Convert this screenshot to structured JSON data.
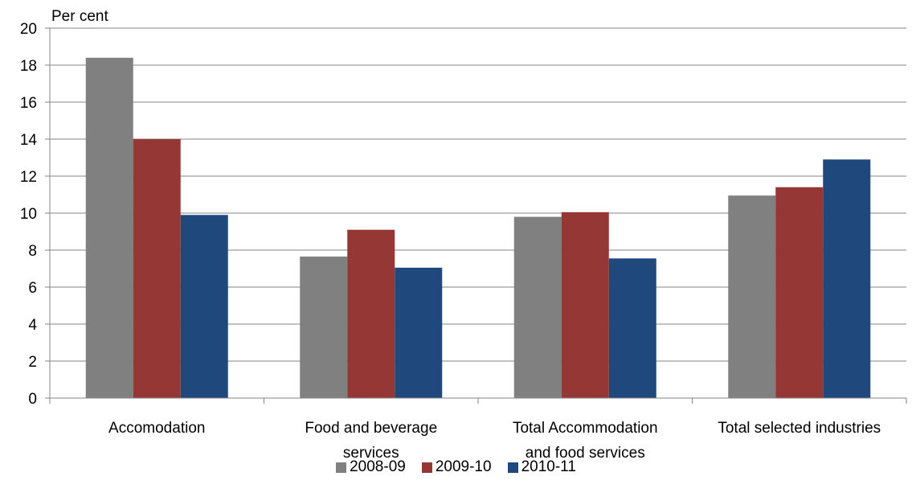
{
  "chart_data": {
    "type": "bar",
    "ylabel": "Per cent",
    "xlabel": "",
    "ylim": [
      0,
      20
    ],
    "yticks": [
      "0",
      "2",
      "4",
      "6",
      "8",
      "10",
      "12",
      "14",
      "16",
      "18",
      "20"
    ],
    "grid": true,
    "legend_position": "bottom",
    "categories": [
      [
        "Accomodation"
      ],
      [
        "Food and beverage",
        "services"
      ],
      [
        "Total Accommodation",
        "and food services"
      ],
      [
        "Total selected industries"
      ]
    ],
    "series": [
      {
        "name": "2008-09",
        "color": "#808080",
        "values": [
          18.4,
          7.65,
          9.8,
          10.95
        ]
      },
      {
        "name": "2009-10",
        "color": "#953735",
        "values": [
          14.0,
          9.1,
          10.05,
          11.4
        ]
      },
      {
        "name": "2010-11",
        "color": "#1f497d",
        "values": [
          9.9,
          7.05,
          7.55,
          12.9
        ]
      }
    ]
  }
}
